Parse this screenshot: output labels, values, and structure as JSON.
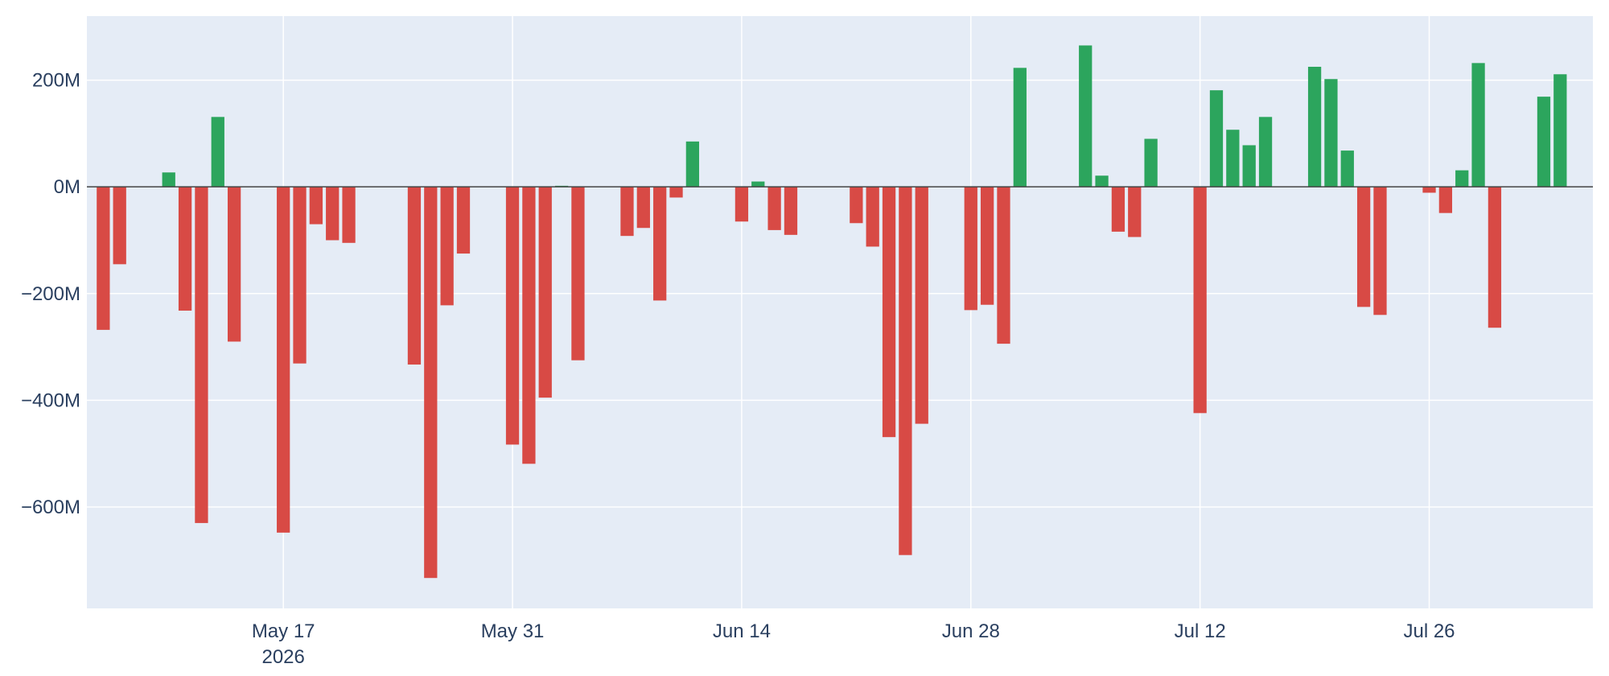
{
  "chart_data": {
    "type": "bar",
    "title": "",
    "xlabel": "",
    "ylabel": "",
    "x_axis_type": "date",
    "x_start": "2026-05-05",
    "x_end": "2026-08-05",
    "ylim": [
      -790,
      320
    ],
    "y_unit": "M",
    "grid": true,
    "legend": "none",
    "colors": {
      "positive": "#2ca55d",
      "negative": "#d84a45",
      "plot_background": "#e5ecf6",
      "grid": "#ffffff",
      "zero_line": "#444444",
      "tick_text": "#2a3f5f"
    },
    "x_ticks": [
      {
        "date": "2026-05-17",
        "label": "May 17",
        "sublabel": "2026"
      },
      {
        "date": "2026-05-31",
        "label": "May 31"
      },
      {
        "date": "2026-06-14",
        "label": "Jun 14"
      },
      {
        "date": "2026-06-28",
        "label": "Jun 28"
      },
      {
        "date": "2026-07-12",
        "label": "Jul 12"
      },
      {
        "date": "2026-07-26",
        "label": "Jul 26"
      }
    ],
    "y_ticks": [
      {
        "value": 200,
        "label": "200M"
      },
      {
        "value": 0,
        "label": "0M"
      },
      {
        "value": -200,
        "label": "−200M"
      },
      {
        "value": -400,
        "label": "−400M"
      },
      {
        "value": -600,
        "label": "−600M"
      }
    ],
    "points": [
      {
        "x": "2026-05-06",
        "y": -268
      },
      {
        "x": "2026-05-07",
        "y": -145
      },
      {
        "x": "2026-05-10",
        "y": 27
      },
      {
        "x": "2026-05-11",
        "y": -232
      },
      {
        "x": "2026-05-12",
        "y": -630
      },
      {
        "x": "2026-05-13",
        "y": 131
      },
      {
        "x": "2026-05-14",
        "y": -290
      },
      {
        "x": "2026-05-17",
        "y": -648
      },
      {
        "x": "2026-05-18",
        "y": -331
      },
      {
        "x": "2026-05-19",
        "y": -70
      },
      {
        "x": "2026-05-20",
        "y": -100
      },
      {
        "x": "2026-05-21",
        "y": -105
      },
      {
        "x": "2026-05-25",
        "y": -333
      },
      {
        "x": "2026-05-26",
        "y": -733
      },
      {
        "x": "2026-05-27",
        "y": -222
      },
      {
        "x": "2026-05-28",
        "y": -125
      },
      {
        "x": "2026-05-31",
        "y": -483
      },
      {
        "x": "2026-06-01",
        "y": -519
      },
      {
        "x": "2026-06-02",
        "y": -395
      },
      {
        "x": "2026-06-03",
        "y": 2
      },
      {
        "x": "2026-06-04",
        "y": -325
      },
      {
        "x": "2026-06-07",
        "y": -92
      },
      {
        "x": "2026-06-08",
        "y": -77
      },
      {
        "x": "2026-06-09",
        "y": -213
      },
      {
        "x": "2026-06-10",
        "y": -20
      },
      {
        "x": "2026-06-11",
        "y": 85
      },
      {
        "x": "2026-06-14",
        "y": -65
      },
      {
        "x": "2026-06-15",
        "y": 10
      },
      {
        "x": "2026-06-16",
        "y": -81
      },
      {
        "x": "2026-06-17",
        "y": -90
      },
      {
        "x": "2026-06-21",
        "y": -68
      },
      {
        "x": "2026-06-22",
        "y": -112
      },
      {
        "x": "2026-06-23",
        "y": -469
      },
      {
        "x": "2026-06-24",
        "y": -690
      },
      {
        "x": "2026-06-25",
        "y": -444
      },
      {
        "x": "2026-06-28",
        "y": -231
      },
      {
        "x": "2026-06-29",
        "y": -221
      },
      {
        "x": "2026-06-30",
        "y": -294
      },
      {
        "x": "2026-07-01",
        "y": 223
      },
      {
        "x": "2026-07-05",
        "y": 265
      },
      {
        "x": "2026-07-06",
        "y": 21
      },
      {
        "x": "2026-07-07",
        "y": -84
      },
      {
        "x": "2026-07-08",
        "y": -94
      },
      {
        "x": "2026-07-09",
        "y": 90
      },
      {
        "x": "2026-07-12",
        "y": -424
      },
      {
        "x": "2026-07-13",
        "y": 181
      },
      {
        "x": "2026-07-14",
        "y": 107
      },
      {
        "x": "2026-07-15",
        "y": 78
      },
      {
        "x": "2026-07-16",
        "y": 131
      },
      {
        "x": "2026-07-19",
        "y": 225
      },
      {
        "x": "2026-07-20",
        "y": 202
      },
      {
        "x": "2026-07-21",
        "y": 68
      },
      {
        "x": "2026-07-22",
        "y": -225
      },
      {
        "x": "2026-07-23",
        "y": -240
      },
      {
        "x": "2026-07-26",
        "y": -11
      },
      {
        "x": "2026-07-27",
        "y": -49
      },
      {
        "x": "2026-07-28",
        "y": 31
      },
      {
        "x": "2026-07-29",
        "y": 232
      },
      {
        "x": "2026-07-30",
        "y": -264
      },
      {
        "x": "2026-08-02",
        "y": 169
      },
      {
        "x": "2026-08-03",
        "y": 211
      }
    ]
  }
}
